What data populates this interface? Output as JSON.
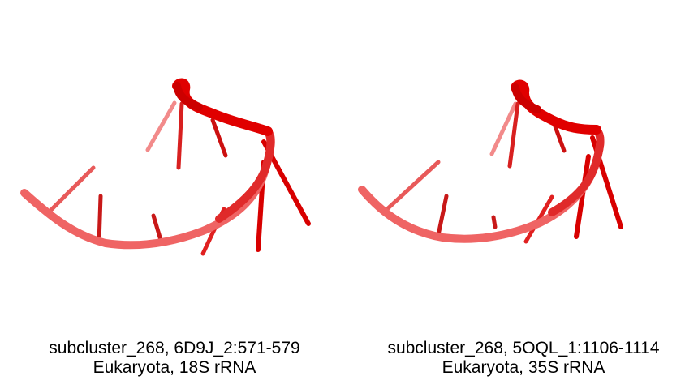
{
  "panels": [
    {
      "id": "6D9J_2:571-579",
      "caption_line1": "subcluster_268, 6D9J_2:571-579",
      "caption_line2": "Eukaryota, 18S rRNA"
    },
    {
      "id": "5OQL_1:1106-1114",
      "caption_line1": "subcluster_268, 5OQL_1:1106-1114",
      "caption_line2": "Eukaryota, 35S rRNA"
    }
  ],
  "colors": {
    "backbone_light": "#f06868",
    "backbone_dark": "#e01010",
    "base_light": "#f08080",
    "base_dark": "#d40000",
    "background": "#ffffff"
  }
}
